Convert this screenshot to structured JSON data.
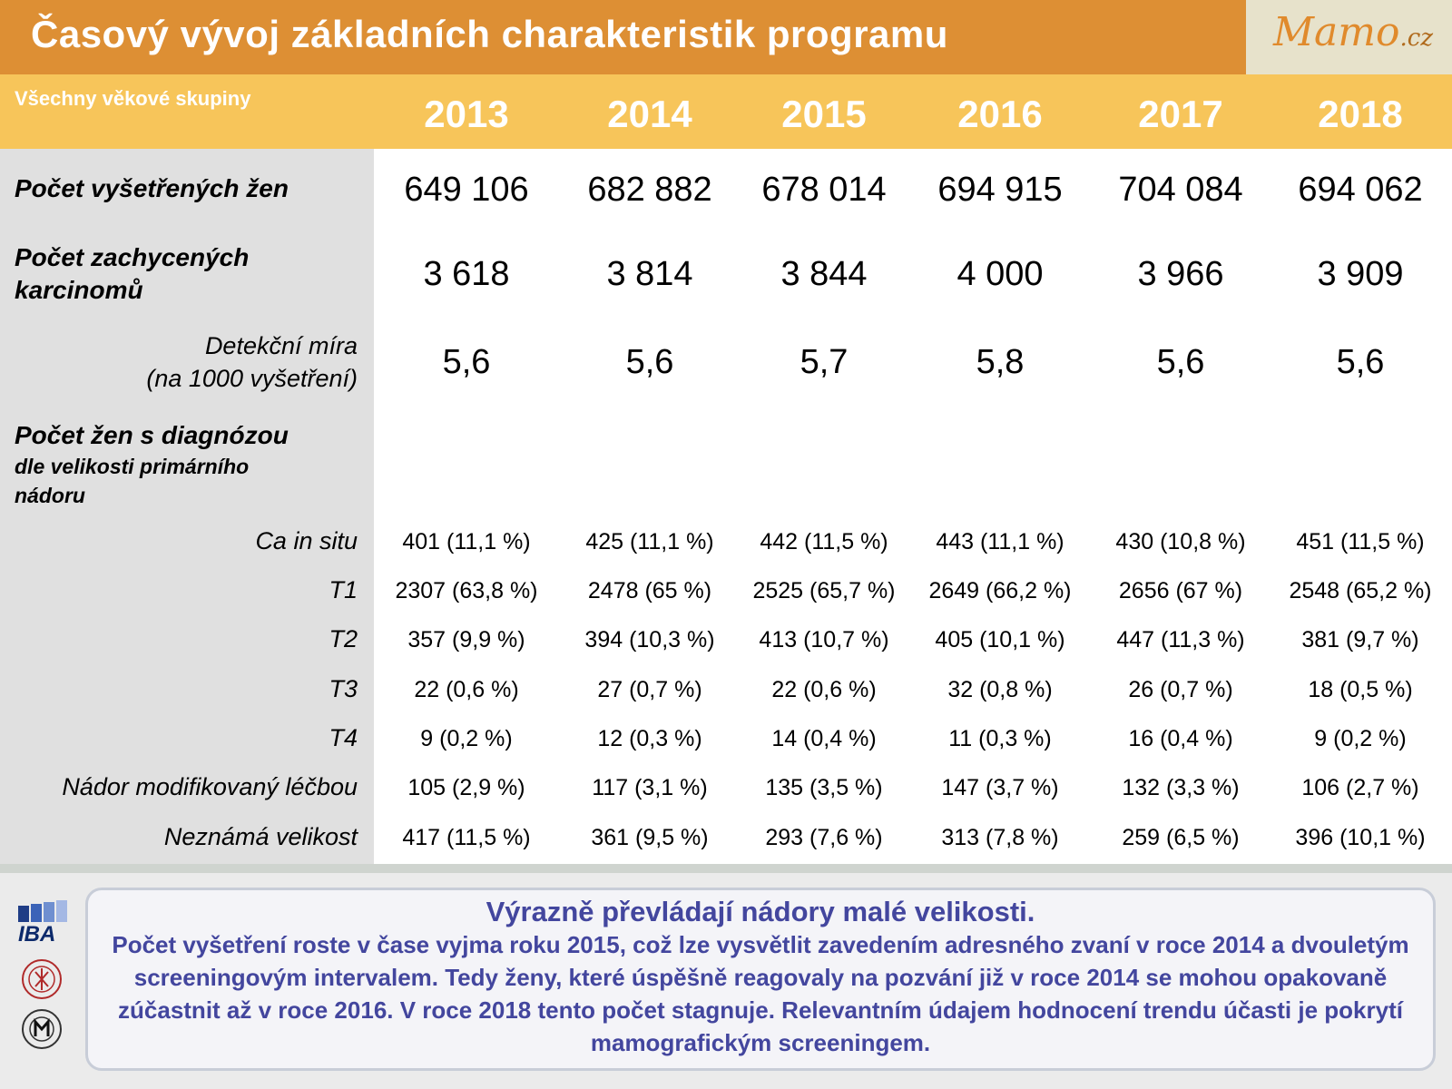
{
  "header": {
    "title": "Časový vývoj základních charakteristik programu",
    "logo": "Mamo",
    "logo_suffix": ".cz"
  },
  "table": {
    "group_label": "Všechny věkové skupiny",
    "years": [
      "2013",
      "2014",
      "2015",
      "2016",
      "2017",
      "2018"
    ],
    "rows": {
      "examined": {
        "label": "Počet vyšetřených žen",
        "values": [
          "649 106",
          "682 882",
          "678 014",
          "694 915",
          "704 084",
          "694 062"
        ]
      },
      "carcinomas": {
        "label_line1": "Počet zachycených",
        "label_line2": "karcinomů",
        "values": [
          "3 618",
          "3 814",
          "3 844",
          "4 000",
          "3 966",
          "3 909"
        ]
      },
      "detection": {
        "label_line1": "Detekční míra",
        "label_line2": "(na 1000 vyšetření)",
        "values": [
          "5,6",
          "5,6",
          "5,7",
          "5,8",
          "5,6",
          "5,6"
        ]
      },
      "diagnosis_heading": {
        "line1": "Počet žen s diagnózou",
        "line2": "dle velikosti primárního",
        "line3": "nádoru"
      },
      "ca_in_situ": {
        "label": "Ca in situ",
        "values": [
          "401 (11,1 %)",
          "425 (11,1 %)",
          "442 (11,5 %)",
          "443 (11,1 %)",
          "430 (10,8 %)",
          "451 (11,5 %)"
        ]
      },
      "t1": {
        "label": "T1",
        "values": [
          "2307 (63,8 %)",
          "2478 (65 %)",
          "2525 (65,7 %)",
          "2649 (66,2 %)",
          "2656 (67 %)",
          "2548 (65,2 %)"
        ]
      },
      "t2": {
        "label": "T2",
        "values": [
          "357 (9,9 %)",
          "394 (10,3 %)",
          "413 (10,7 %)",
          "405 (10,1 %)",
          "447 (11,3 %)",
          "381 (9,7 %)"
        ]
      },
      "t3": {
        "label": "T3",
        "values": [
          "22 (0,6 %)",
          "27 (0,7 %)",
          "22 (0,6 %)",
          "32 (0,8 %)",
          "26 (0,7 %)",
          "18 (0,5 %)"
        ]
      },
      "t4": {
        "label": "T4",
        "values": [
          "9 (0,2 %)",
          "12 (0,3 %)",
          "14 (0,4 %)",
          "11 (0,3 %)",
          "16 (0,4 %)",
          "9 (0,2 %)"
        ]
      },
      "modified": {
        "label": "Nádor modifikovaný léčbou",
        "values": [
          "105 (2,9 %)",
          "117 (3,1 %)",
          "135 (3,5 %)",
          "147 (3,7 %)",
          "132 (3,3 %)",
          "106 (2,7 %)"
        ]
      },
      "unknown": {
        "label": "Neznámá velikost",
        "values": [
          "417 (11,5 %)",
          "361 (9,5 %)",
          "293 (7,6 %)",
          "313 (7,8 %)",
          "259 (6,5 %)",
          "396 (10,1 %)"
        ]
      }
    }
  },
  "note": {
    "title": "Výrazně převládají nádory malé velikosti.",
    "body": "Počet vyšetření roste v čase vyjma roku 2015, což lze vysvětlit zavedením adresného zvaní v roce 2014 a dvouletým screeningovým intervalem. Tedy ženy, které úspěšně reagovaly na pozvání již v roce 2014 se mohou opakovaně zúčastnit až v roce 2016. V roce 2018 tento počet stagnuje. Relevantním údajem hodnocení trendu účasti je pokrytí mamografickým screeningem."
  },
  "footer_logos": {
    "iba": "IBA"
  },
  "colors": {
    "title_bar": "#dd8f34",
    "subheader_bar": "#f7c55a",
    "logo_bg": "#e7e2cb",
    "label_column": "#e0e0e0",
    "note_text": "#43469e"
  }
}
